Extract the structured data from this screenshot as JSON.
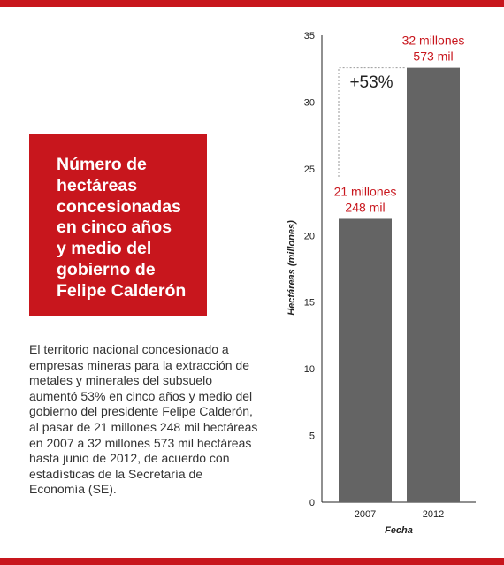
{
  "colors": {
    "accent": "#c8161d",
    "bar": "#646464",
    "label": "#c8161d",
    "text": "#333333",
    "axis": "#222222"
  },
  "title": "Número de\nhectáreas\nconcesionadas\nen cinco años\ny medio del\ngobierno de\nFelipe Calderón",
  "description": "El territorio nacional concesionado a empresas mineras para la extracción de metales y minerales del subsuelo aumentó 53% en cinco años y medio del gobierno del presidente Felipe Calderón, al pasar de 21 millones 248 mil hectáreas en 2007 a 32 millones 573 mil hectáreas hasta junio de 2012, de acuerdo con estadísticas de la Secretaría de Economía (SE).",
  "chart_data": {
    "type": "bar",
    "categories": [
      "2007",
      "2012"
    ],
    "values": [
      21.248,
      32.573
    ],
    "data_labels": [
      [
        "21 millones",
        "248 mil"
      ],
      [
        "32 millones",
        "573 mil"
      ]
    ],
    "annotation": "+53%",
    "xlabel": "Fecha",
    "ylabel": "Hectáreas (millones)",
    "ylim": [
      0,
      35
    ],
    "yticks": [
      0,
      5,
      10,
      15,
      20,
      25,
      30,
      35
    ],
    "grid": false,
    "legend": "none"
  }
}
